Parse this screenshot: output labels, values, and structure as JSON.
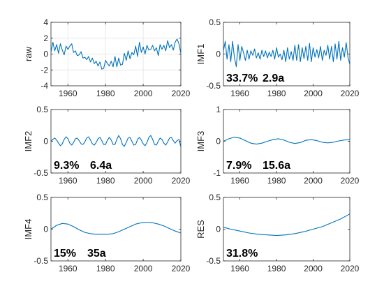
{
  "colors": {
    "line": "#0072BD",
    "axis": "#262626",
    "grid": "#dfdfdf"
  },
  "chart_data": [
    {
      "type": "line",
      "ylabel": "raw",
      "xlim": [
        1951,
        2020
      ],
      "ylim": [
        -4,
        4
      ],
      "xticks": [
        1960,
        1980,
        2000,
        2020
      ],
      "yticks": [
        4,
        2,
        0,
        -2,
        -4
      ],
      "grid": true,
      "annotations": [],
      "x": [
        1951,
        1952,
        1953,
        1954,
        1955,
        1956,
        1957,
        1958,
        1959,
        1960,
        1961,
        1962,
        1963,
        1964,
        1965,
        1966,
        1967,
        1968,
        1969,
        1970,
        1971,
        1972,
        1973,
        1974,
        1975,
        1976,
        1977,
        1978,
        1979,
        1980,
        1981,
        1982,
        1983,
        1984,
        1985,
        1986,
        1987,
        1988,
        1989,
        1990,
        1991,
        1992,
        1993,
        1994,
        1995,
        1996,
        1997,
        1998,
        1999,
        2000,
        2001,
        2002,
        2003,
        2004,
        2005,
        2006,
        2007,
        2008,
        2009,
        2010,
        2011,
        2012,
        2013,
        2014,
        2015,
        2016,
        2017,
        2018,
        2019,
        2020
      ],
      "y": [
        0.2,
        1.5,
        0.4,
        1.2,
        0.1,
        1.3,
        0.5,
        -0.1,
        1.0,
        0.6,
        1.0,
        1.3,
        0.2,
        0.4,
        -0.2,
        -0.1,
        0.3,
        -0.5,
        -0.4,
        -0.7,
        -0.3,
        -1.0,
        -0.5,
        -1.2,
        -0.9,
        -1.5,
        -1.0,
        -1.9,
        -1.8,
        -0.8,
        -1.2,
        -1.5,
        -0.9,
        -1.6,
        -0.3,
        -1.6,
        -0.5,
        -1.4,
        -1.3,
        0.1,
        -0.8,
        0.4,
        -0.6,
        0.2,
        -0.1,
        1.0,
        -0.3,
        1.5,
        0.2,
        0.9,
        0.0,
        1.1,
        0.5,
        0.6,
        1.1,
        0.4,
        0.8,
        -0.2,
        1.2,
        0.6,
        1.1,
        0.4,
        1.7,
        0.8,
        1.2,
        0.5,
        1.5,
        1.9,
        1.3,
        0.1
      ]
    },
    {
      "type": "line",
      "ylabel": "IMF1",
      "xlim": [
        1951,
        2020
      ],
      "ylim": [
        -0.5,
        0.5
      ],
      "xticks": [
        1960,
        1980,
        2000,
        2020
      ],
      "yticks": [
        0.5,
        0,
        -0.5
      ],
      "grid": false,
      "annotations": [
        "33.7%",
        "2.9a"
      ],
      "x": [
        1951,
        1952,
        1953,
        1954,
        1955,
        1956,
        1957,
        1958,
        1959,
        1960,
        1961,
        1962,
        1963,
        1964,
        1965,
        1966,
        1967,
        1968,
        1969,
        1970,
        1971,
        1972,
        1973,
        1974,
        1975,
        1976,
        1977,
        1978,
        1979,
        1980,
        1981,
        1982,
        1983,
        1984,
        1985,
        1986,
        1987,
        1988,
        1989,
        1990,
        1991,
        1992,
        1993,
        1994,
        1995,
        1996,
        1997,
        1998,
        1999,
        2000,
        2001,
        2002,
        2003,
        2004,
        2005,
        2006,
        2007,
        2008,
        2009,
        2010,
        2011,
        2012,
        2013,
        2014,
        2015,
        2016,
        2017,
        2018,
        2019,
        2020
      ],
      "y": [
        0.05,
        0.2,
        -0.08,
        0.15,
        -0.12,
        0.2,
        -0.05,
        -0.2,
        0.15,
        -0.1,
        0.12,
        0.02,
        -0.1,
        0.06,
        -0.08,
        0.05,
        -0.02,
        0.08,
        -0.06,
        0.02,
        -0.08,
        0.06,
        -0.04,
        0.05,
        -0.06,
        0.03,
        -0.04,
        0.06,
        -0.08,
        0.1,
        -0.05,
        0.0,
        -0.09,
        0.06,
        -0.12,
        0.1,
        -0.08,
        0.04,
        -0.1,
        0.14,
        -0.1,
        0.15,
        -0.12,
        0.1,
        -0.07,
        0.12,
        -0.1,
        0.17,
        -0.12,
        0.1,
        -0.05,
        0.07,
        -0.06,
        0.12,
        -0.1,
        0.06,
        -0.02,
        0.14,
        -0.08,
        0.12,
        -0.12,
        0.16,
        -0.08,
        0.2,
        -0.1,
        0.1,
        -0.05,
        0.18,
        -0.05,
        -0.16
      ]
    },
    {
      "type": "line",
      "ylabel": "IMF2",
      "xlim": [
        1951,
        2020
      ],
      "ylim": [
        -0.5,
        0.5
      ],
      "xticks": [
        1960,
        1980,
        2000,
        2020
      ],
      "yticks": [
        0.5,
        0,
        -0.5
      ],
      "grid": false,
      "annotations": [
        "9.3%",
        "6.4a"
      ],
      "x": [
        1951,
        1952,
        1953,
        1954,
        1955,
        1956,
        1957,
        1958,
        1959,
        1960,
        1961,
        1962,
        1963,
        1964,
        1965,
        1966,
        1967,
        1968,
        1969,
        1970,
        1971,
        1972,
        1973,
        1974,
        1975,
        1976,
        1977,
        1978,
        1979,
        1980,
        1981,
        1982,
        1983,
        1984,
        1985,
        1986,
        1987,
        1988,
        1989,
        1990,
        1991,
        1992,
        1993,
        1994,
        1995,
        1996,
        1997,
        1998,
        1999,
        2000,
        2001,
        2002,
        2003,
        2004,
        2005,
        2006,
        2007,
        2008,
        2009,
        2010,
        2011,
        2012,
        2013,
        2014,
        2015,
        2016,
        2017,
        2018,
        2019,
        2020
      ],
      "y": [
        0.0,
        0.03,
        0.05,
        0.02,
        -0.03,
        -0.07,
        -0.04,
        0.03,
        0.07,
        0.04,
        -0.03,
        -0.06,
        -0.02,
        0.04,
        0.05,
        0.01,
        -0.04,
        -0.05,
        -0.01,
        0.05,
        0.07,
        0.02,
        -0.04,
        -0.06,
        -0.02,
        0.04,
        0.06,
        0.01,
        -0.05,
        -0.05,
        0.02,
        0.06,
        0.02,
        -0.05,
        -0.05,
        0.03,
        0.09,
        0.04,
        -0.05,
        -0.08,
        -0.02,
        0.05,
        0.06,
        0.0,
        -0.06,
        -0.05,
        0.03,
        0.06,
        0.02,
        -0.04,
        -0.07,
        -0.02,
        0.06,
        0.09,
        0.03,
        -0.05,
        -0.06,
        0.0,
        0.05,
        0.03,
        -0.03,
        -0.06,
        -0.01,
        0.05,
        0.06,
        0.01,
        -0.03,
        0.01,
        0.03,
        -0.09
      ]
    },
    {
      "type": "line",
      "ylabel": "IMF3",
      "xlim": [
        1951,
        2020
      ],
      "ylim": [
        -1,
        1
      ],
      "xticks": [
        1960,
        1980,
        2000,
        2020
      ],
      "yticks": [
        1,
        0,
        -1
      ],
      "grid": false,
      "annotations": [
        "7.9%",
        "15.6a"
      ],
      "x": [
        1951,
        1954,
        1957,
        1960,
        1963,
        1966,
        1969,
        1972,
        1975,
        1978,
        1981,
        1984,
        1987,
        1990,
        1993,
        1996,
        1999,
        2002,
        2005,
        2008,
        2011,
        2014,
        2017,
        2020
      ],
      "y": [
        0.0,
        0.08,
        0.13,
        0.1,
        0.02,
        -0.06,
        -0.09,
        -0.06,
        0.0,
        0.05,
        0.08,
        0.04,
        -0.03,
        -0.07,
        -0.04,
        0.03,
        0.05,
        0.02,
        -0.03,
        -0.05,
        -0.03,
        0.01,
        0.04,
        0.05
      ]
    },
    {
      "type": "line",
      "ylabel": "IMF4",
      "xlim": [
        1951,
        2020
      ],
      "ylim": [
        -0.5,
        0.5
      ],
      "xticks": [
        1960,
        1980,
        2000,
        2020
      ],
      "yticks": [
        0.5,
        0,
        -0.5
      ],
      "grid": false,
      "annotations": [
        "15%",
        "35a"
      ],
      "x": [
        1951,
        1954,
        1957,
        1960,
        1963,
        1966,
        1969,
        1972,
        1975,
        1978,
        1981,
        1984,
        1987,
        1990,
        1993,
        1996,
        1999,
        2002,
        2005,
        2008,
        2011,
        2014,
        2017,
        2020
      ],
      "y": [
        0.0,
        0.06,
        0.09,
        0.08,
        0.04,
        -0.01,
        -0.05,
        -0.07,
        -0.08,
        -0.08,
        -0.08,
        -0.07,
        -0.04,
        0.0,
        0.04,
        0.08,
        0.1,
        0.11,
        0.1,
        0.08,
        0.05,
        0.01,
        -0.03,
        -0.06
      ]
    },
    {
      "type": "line",
      "ylabel": "RES",
      "xlim": [
        1951,
        2020
      ],
      "ylim": [
        -0.5,
        0.5
      ],
      "xticks": [
        1960,
        1980,
        2000,
        2020
      ],
      "yticks": [
        0.5,
        0,
        -0.5
      ],
      "grid": false,
      "annotations": [
        "31.8%"
      ],
      "x": [
        1951,
        1955,
        1960,
        1965,
        1970,
        1975,
        1980,
        1985,
        1990,
        1995,
        2000,
        2005,
        2010,
        2015,
        2020
      ],
      "y": [
        0.03,
        0.0,
        -0.03,
        -0.06,
        -0.08,
        -0.09,
        -0.1,
        -0.09,
        -0.07,
        -0.04,
        0.0,
        0.04,
        0.1,
        0.16,
        0.24
      ]
    }
  ]
}
